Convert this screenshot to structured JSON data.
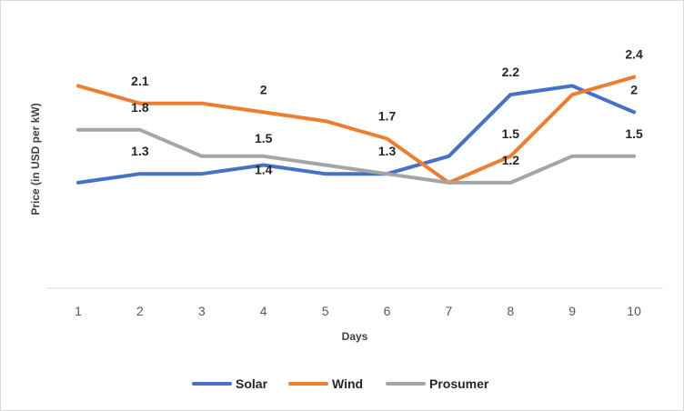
{
  "chart_data": {
    "type": "line",
    "x": [
      "1",
      "2",
      "3",
      "4",
      "5",
      "6",
      "7",
      "8",
      "9",
      "10"
    ],
    "xlabel": "Days",
    "ylabel": "Price (in USD per kW)",
    "ylim": [
      0,
      2.8
    ],
    "grid": false,
    "legend_position": "bottom",
    "series": [
      {
        "name": "Solar",
        "color": "#4472C4",
        "values": [
          1.2,
          1.3,
          1.3,
          1.4,
          1.3,
          1.3,
          1.5,
          2.2,
          2.3,
          2.0
        ],
        "data_labels": [
          null,
          "1.3",
          null,
          "1.4",
          null,
          null,
          null,
          "2.2",
          null,
          "2"
        ]
      },
      {
        "name": "Wind",
        "color": "#ED7D31",
        "values": [
          2.3,
          2.1,
          2.1,
          2.0,
          1.9,
          1.7,
          1.2,
          1.5,
          2.2,
          2.4
        ],
        "data_labels": [
          null,
          "2.1",
          null,
          "2",
          null,
          "1.7",
          null,
          "1.5",
          null,
          "2.4"
        ]
      },
      {
        "name": "Prosumer",
        "color": "#A5A5A5",
        "values": [
          1.8,
          1.8,
          1.5,
          1.5,
          1.4,
          1.3,
          1.2,
          1.2,
          1.5,
          1.5
        ],
        "data_labels": [
          null,
          "1.8",
          null,
          "1.5",
          null,
          "1.3",
          null,
          "1.2",
          null,
          "1.5"
        ]
      }
    ]
  }
}
